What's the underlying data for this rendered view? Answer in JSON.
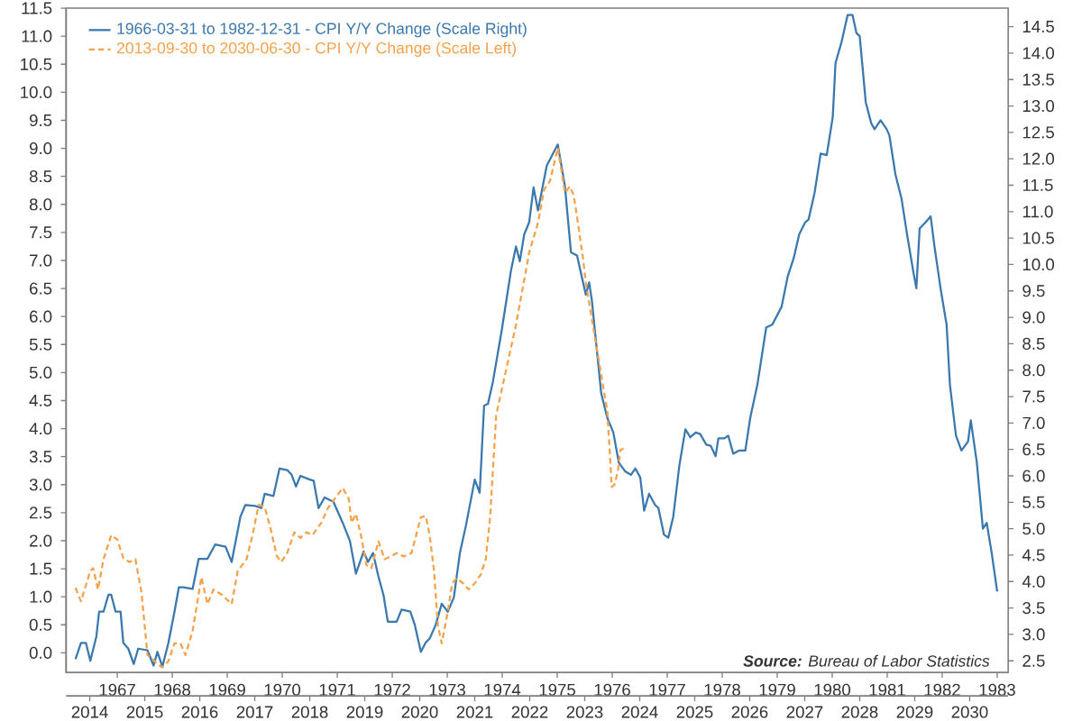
{
  "chart_data": {
    "type": "line",
    "legend": "top left",
    "xlim": [
      1966.07,
      1983.2
    ],
    "xticks": [
      1967,
      1968,
      1969,
      1970,
      1971,
      1972,
      1973,
      1974,
      1975,
      1976,
      1977,
      1978,
      1979,
      1980,
      1981,
      1982,
      1983
    ],
    "x2lim": [
      2013.57,
      2030.7
    ],
    "x2ticks": [
      2014,
      2015,
      2016,
      2017,
      2018,
      2019,
      2020,
      2021,
      2022,
      2023,
      2024,
      2025,
      2026,
      2027,
      2028,
      2029,
      2030
    ],
    "ylim": [
      -0.35,
      11.5
    ],
    "yticks": [
      {
        "value": 0,
        "label": "0.0"
      },
      {
        "value": 0.5,
        "label": "0.5"
      },
      {
        "value": 1,
        "label": "1.0"
      },
      {
        "value": 1.5,
        "label": "1.5"
      },
      {
        "value": 2,
        "label": "2.0"
      },
      {
        "value": 2.5,
        "label": "2.5"
      },
      {
        "value": 3,
        "label": "3.0"
      },
      {
        "value": 3.5,
        "label": "3.5"
      },
      {
        "value": 4,
        "label": "4.0"
      },
      {
        "value": 4.5,
        "label": "4.5"
      },
      {
        "value": 5,
        "label": "5.0"
      },
      {
        "value": 5.5,
        "label": "5.5"
      },
      {
        "value": 6,
        "label": "6.0"
      },
      {
        "value": 6.5,
        "label": "6.5"
      },
      {
        "value": 7,
        "label": "7.0"
      },
      {
        "value": 7.5,
        "label": "7.5"
      },
      {
        "value": 8,
        "label": "8.0"
      },
      {
        "value": 8.5,
        "label": "8.5"
      },
      {
        "value": 9,
        "label": "9.0"
      },
      {
        "value": 9.5,
        "label": "9.5"
      },
      {
        "value": 10,
        "label": "10.0"
      },
      {
        "value": 10.5,
        "label": "10.5"
      },
      {
        "value": 11,
        "label": "11.0"
      },
      {
        "value": 11.5,
        "label": "11.5"
      }
    ],
    "y2lim": [
      2.28,
      14.85
    ],
    "y2ticks": [
      {
        "value": 2.5,
        "label": "2.5"
      },
      {
        "value": 3,
        "label": "3.0"
      },
      {
        "value": 3.5,
        "label": "3.5"
      },
      {
        "value": 4,
        "label": "4.0"
      },
      {
        "value": 4.5,
        "label": "4.5"
      },
      {
        "value": 5,
        "label": "5.0"
      },
      {
        "value": 5.5,
        "label": "5.5"
      },
      {
        "value": 6,
        "label": "6.0"
      },
      {
        "value": 6.5,
        "label": "6.5"
      },
      {
        "value": 7,
        "label": "7.0"
      },
      {
        "value": 7.5,
        "label": "7.5"
      },
      {
        "value": 8,
        "label": "8.0"
      },
      {
        "value": 8.5,
        "label": "8.5"
      },
      {
        "value": 9,
        "label": "9.0"
      },
      {
        "value": 9.5,
        "label": "9.5"
      },
      {
        "value": 10,
        "label": "10.0"
      },
      {
        "value": 10.5,
        "label": "10.5"
      },
      {
        "value": 11,
        "label": "11.0"
      },
      {
        "value": 11.5,
        "label": "11.5"
      },
      {
        "value": 12,
        "label": "12.0"
      },
      {
        "value": 12.5,
        "label": "12.5"
      },
      {
        "value": 13,
        "label": "13.0"
      },
      {
        "value": 13.5,
        "label": "13.5"
      },
      {
        "value": 14,
        "label": "14.0"
      },
      {
        "value": 14.5,
        "label": "14.5"
      }
    ],
    "series": [
      {
        "name": "1966-03-31 to 1982-12-31 - CPI Y/Y Change (Scale Right)",
        "color": "#3a78ad",
        "axis": "y2",
        "line_style": "solid",
        "x": [
          1966.24,
          1966.34,
          1966.43,
          1966.51,
          1966.62,
          1966.67,
          1966.75,
          1966.84,
          1966.89,
          1966.97,
          1967.06,
          1967.11,
          1967.2,
          1967.3,
          1967.38,
          1967.55,
          1967.66,
          1967.73,
          1967.82,
          1967.93,
          1968.04,
          1968.12,
          1968.2,
          1968.37,
          1968.48,
          1968.64,
          1968.78,
          1968.97,
          1969.08,
          1969.24,
          1969.33,
          1969.51,
          1969.62,
          1969.68,
          1969.84,
          1969.95,
          1970.09,
          1970.17,
          1970.25,
          1970.33,
          1970.5,
          1970.57,
          1970.66,
          1970.77,
          1970.93,
          1971.1,
          1971.23,
          1971.34,
          1971.48,
          1971.56,
          1971.65,
          1971.75,
          1971.84,
          1971.92,
          1972.08,
          1972.17,
          1972.33,
          1972.41,
          1972.52,
          1972.61,
          1972.68,
          1972.79,
          1972.9,
          1973.01,
          1973.12,
          1973.23,
          1973.34,
          1973.5,
          1973.59,
          1973.67,
          1973.74,
          1973.83,
          1973.99,
          1974.16,
          1974.25,
          1974.32,
          1974.4,
          1974.49,
          1974.57,
          1974.65,
          1974.81,
          1975.01,
          1975.14,
          1975.25,
          1975.36,
          1975.47,
          1975.52,
          1975.58,
          1975.63,
          1975.8,
          1975.91,
          1976.02,
          1976.12,
          1976.24,
          1976.34,
          1976.42,
          1976.51,
          1976.58,
          1976.67,
          1976.78,
          1976.84,
          1976.94,
          1977.02,
          1977.11,
          1977.22,
          1977.33,
          1977.42,
          1977.52,
          1977.6,
          1977.71,
          1977.79,
          1977.88,
          1977.93,
          1978.04,
          1978.11,
          1978.2,
          1978.31,
          1978.42,
          1978.51,
          1978.64,
          1978.8,
          1978.91,
          1979.08,
          1979.19,
          1979.3,
          1979.4,
          1979.51,
          1979.57,
          1979.68,
          1979.79,
          1979.9,
          1980.01,
          1980.06,
          1980.17,
          1980.28,
          1980.37,
          1980.44,
          1980.5,
          1980.61,
          1980.71,
          1980.77,
          1980.88,
          1980.99,
          1981.04,
          1981.15,
          1981.26,
          1981.37,
          1981.48,
          1981.53,
          1981.59,
          1981.7,
          1981.79,
          1981.86,
          1981.97,
          1982.08,
          1982.14,
          1982.25,
          1982.35,
          1982.47,
          1982.52,
          1982.63,
          1982.74,
          1982.81,
          1982.9,
          1983.0
        ],
        "values": [
          2.53,
          2.84,
          2.84,
          2.5,
          2.96,
          3.43,
          3.43,
          3.75,
          3.75,
          3.43,
          3.43,
          2.84,
          2.73,
          2.44,
          2.73,
          2.7,
          2.41,
          2.67,
          2.39,
          2.84,
          3.43,
          3.89,
          3.89,
          3.86,
          4.43,
          4.43,
          4.7,
          4.66,
          4.37,
          5.23,
          5.45,
          5.43,
          5.39,
          5.66,
          5.62,
          6.14,
          6.11,
          6.02,
          5.8,
          6.0,
          5.93,
          5.91,
          5.39,
          5.59,
          5.51,
          5.11,
          4.77,
          4.15,
          4.57,
          4.37,
          4.54,
          4.09,
          3.75,
          3.24,
          3.24,
          3.47,
          3.43,
          3.18,
          2.67,
          2.85,
          2.92,
          3.18,
          3.58,
          3.43,
          3.7,
          4.54,
          5.06,
          5.93,
          5.68,
          7.33,
          7.36,
          7.78,
          8.75,
          9.89,
          10.34,
          10.06,
          10.57,
          10.8,
          11.46,
          11.02,
          11.87,
          12.27,
          11.48,
          10.23,
          10.17,
          9.66,
          9.43,
          9.66,
          9.32,
          7.56,
          7.1,
          6.82,
          6.25,
          6.08,
          6.02,
          6.14,
          5.97,
          5.34,
          5.66,
          5.45,
          5.39,
          4.89,
          4.83,
          5.23,
          6.19,
          6.88,
          6.73,
          6.82,
          6.79,
          6.59,
          6.57,
          6.37,
          6.71,
          6.71,
          6.76,
          6.42,
          6.48,
          6.48,
          7.1,
          7.73,
          8.81,
          8.86,
          9.2,
          9.77,
          10.12,
          10.57,
          10.8,
          10.85,
          11.36,
          12.1,
          12.07,
          12.79,
          13.81,
          14.21,
          14.72,
          14.72,
          14.38,
          14.32,
          13.07,
          12.67,
          12.56,
          12.73,
          12.56,
          12.44,
          11.7,
          11.25,
          10.51,
          9.83,
          9.55,
          10.68,
          10.8,
          10.91,
          10.34,
          9.55,
          8.86,
          7.73,
          6.76,
          6.48,
          6.65,
          7.05,
          6.25,
          5.0,
          5.11,
          4.54,
          3.81
        ]
      },
      {
        "name": "2013-09-30 to 2030-06-30 - CPI Y/Y Change (Scale Left)",
        "color": "#f4a24c",
        "axis": "x2",
        "line_style": "dashed",
        "x": [
          2013.74,
          2013.84,
          2014.01,
          2014.06,
          2014.15,
          2014.25,
          2014.39,
          2014.5,
          2014.61,
          2014.72,
          2014.83,
          2014.94,
          2015.05,
          2015.13,
          2015.23,
          2015.32,
          2015.43,
          2015.54,
          2015.65,
          2015.74,
          2015.87,
          2016.03,
          2016.14,
          2016.25,
          2016.41,
          2016.58,
          2016.69,
          2016.85,
          2016.96,
          2017.07,
          2017.18,
          2017.29,
          2017.4,
          2017.48,
          2017.59,
          2017.72,
          2017.83,
          2017.94,
          2018.05,
          2018.21,
          2018.33,
          2018.49,
          2018.6,
          2018.71,
          2018.76,
          2018.84,
          2018.93,
          2019.03,
          2019.12,
          2019.25,
          2019.36,
          2019.47,
          2019.58,
          2019.71,
          2019.85,
          2020.02,
          2020.11,
          2020.18,
          2020.26,
          2020.33,
          2020.4,
          2020.51,
          2020.59,
          2020.67,
          2020.79,
          2020.89,
          2021.0,
          2021.11,
          2021.2,
          2021.28,
          2021.39,
          2021.75,
          2021.99,
          2022.15,
          2022.26,
          2022.37,
          2022.51,
          2022.64,
          2022.73,
          2022.8,
          2022.86,
          2022.97,
          2023.02,
          2023.41,
          2023.46,
          2023.49,
          2023.54,
          2023.6,
          2023.65,
          2023.74
        ],
        "values": [
          1.16,
          0.92,
          1.46,
          1.51,
          1.13,
          1.67,
          2.1,
          2.02,
          1.69,
          1.62,
          1.67,
          1.08,
          -0.04,
          -0.1,
          -0.2,
          -0.26,
          -0.15,
          0.17,
          0.17,
          -0.04,
          0.39,
          1.35,
          0.87,
          1.13,
          1.03,
          0.87,
          1.46,
          1.67,
          2.1,
          2.64,
          2.6,
          2.21,
          1.73,
          1.62,
          1.78,
          2.15,
          2.05,
          2.15,
          2.1,
          2.32,
          2.58,
          2.8,
          2.94,
          2.75,
          2.32,
          2.48,
          2.1,
          1.57,
          1.51,
          1.99,
          1.67,
          1.72,
          1.78,
          1.72,
          1.78,
          2.42,
          2.44,
          2.1,
          1.46,
          0.49,
          0.17,
          0.73,
          1.24,
          1.33,
          1.24,
          1.13,
          1.24,
          1.4,
          1.67,
          2.42,
          4.24,
          5.85,
          7.14,
          7.67,
          8.26,
          8.42,
          9.01,
          8.21,
          8.32,
          8.16,
          7.78,
          7.03,
          6.6,
          4.31,
          3.5,
          2.96,
          3.0,
          3.22,
          3.62,
          3.66
        ]
      }
    ],
    "annotations": [
      "**Source:** Bureau of Labor Statistics"
    ]
  }
}
